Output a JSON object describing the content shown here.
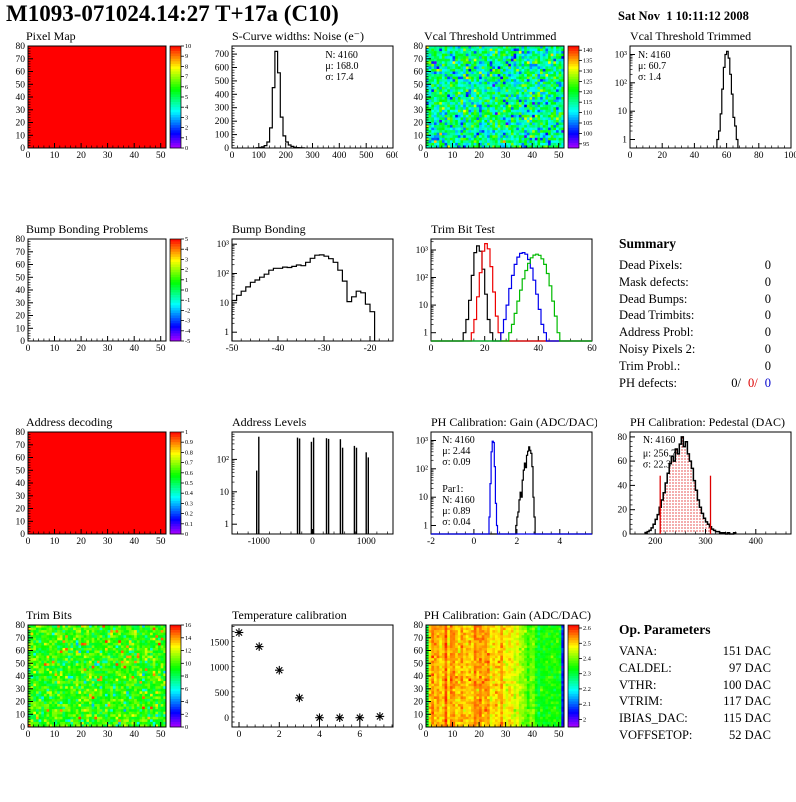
{
  "header": {
    "title": "M1093-071024.14:27 T+17a (C10)",
    "date": "Sat Nov  1 10:11:12 2008"
  },
  "summary": {
    "title": "Summary",
    "rows": [
      {
        "label": "Dead Pixels:",
        "value": "0"
      },
      {
        "label": "Mask defects:",
        "value": "0"
      },
      {
        "label": "Dead Bumps:",
        "value": "0"
      },
      {
        "label": "Dead Trimbits:",
        "value": "0"
      },
      {
        "label": "Address Probl:",
        "value": "0"
      },
      {
        "label": "Noisy Pixels 2:",
        "value": "0"
      },
      {
        "label": "Trim Probl.:",
        "value": "0"
      }
    ],
    "ph_defects": {
      "label": "PH defects:",
      "black": "0/",
      "red": "0/",
      "blue": "0"
    }
  },
  "op_parameters": {
    "title": "Op. Parameters",
    "rows": [
      {
        "label": "VANA:",
        "value": "151 DAC"
      },
      {
        "label": "CALDEL:",
        "value": "97 DAC"
      },
      {
        "label": "VTHR:",
        "value": "100 DAC"
      },
      {
        "label": "VTRIM:",
        "value": "117 DAC"
      },
      {
        "label": "IBIAS_DAC:",
        "value": "115 DAC"
      },
      {
        "label": "VOFFSETOP:",
        "value": "52 DAC"
      }
    ]
  },
  "colors": {
    "accent_red": "#dd0000",
    "accent_blue": "#0000cc",
    "hist_green": "#00bb00"
  },
  "chart_data": [
    {
      "id": "pixel-map",
      "type": "heatmap",
      "mode": "uniform",
      "title": "Pixel Map",
      "fill_value": 10,
      "xlim": [
        0,
        52
      ],
      "ylim": [
        0,
        80
      ],
      "xticks": [
        0,
        10,
        20,
        30,
        40,
        50
      ],
      "yticks": [
        0,
        10,
        20,
        30,
        40,
        50,
        60,
        70,
        80
      ],
      "zmin": 0,
      "zmax": 10,
      "colorbar": {
        "ticks": [
          0,
          1,
          2,
          3,
          4,
          5,
          6,
          7,
          8,
          9,
          10
        ]
      }
    },
    {
      "id": "scurve-noise",
      "type": "histogram",
      "title": "S-Curve widths: Noise (e⁻)",
      "xlim": [
        0,
        600
      ],
      "xticks": [
        0,
        100,
        200,
        300,
        400,
        500,
        600
      ],
      "ylim": [
        0,
        760
      ],
      "yticks": [
        0,
        100,
        200,
        300,
        400,
        500,
        600,
        700
      ],
      "series": [
        {
          "color": "#000000",
          "x0": 90,
          "bin_width": 10,
          "counts": [
            2,
            4,
            8,
            18,
            45,
            150,
            450,
            720,
            560,
            230,
            90,
            45,
            22,
            12,
            6,
            3,
            2,
            1
          ]
        }
      ],
      "stats": [
        {
          "color": "#000000",
          "x": 0.58,
          "y": 0.03,
          "lines": [
            "N: 4160",
            "μ: 168.0",
            "σ: 17.4"
          ]
        }
      ]
    },
    {
      "id": "vcal-untrimmed",
      "type": "heatmap",
      "mode": "noise",
      "title": "Vcal Threshold Untrimmed",
      "mean": 115,
      "sigma": 6,
      "seed": 7,
      "xlim": [
        0,
        52
      ],
      "ylim": [
        0,
        80
      ],
      "xticks": [
        0,
        10,
        20,
        30,
        40,
        50
      ],
      "yticks": [
        0,
        10,
        20,
        30,
        40,
        50,
        60,
        70,
        80
      ],
      "zmin": 93,
      "zmax": 142,
      "colorbar": {
        "ticks": [
          95,
          100,
          105,
          110,
          115,
          120,
          125,
          130,
          135,
          140
        ]
      }
    },
    {
      "id": "vcal-trimmed",
      "type": "histogram",
      "ylog": true,
      "title": "Vcal Threshold Trimmed",
      "xlim": [
        0,
        100
      ],
      "xticks": [
        0,
        20,
        40,
        60,
        80,
        100
      ],
      "ylog_range": [
        0.5,
        2000
      ],
      "series": [
        {
          "color": "#000000",
          "x0": 54,
          "bin_width": 1,
          "counts": [
            1,
            2,
            8,
            60,
            350,
            1000,
            1300,
            750,
            200,
            40,
            6,
            3,
            1
          ]
        }
      ],
      "stats": [
        {
          "color": "#000000",
          "x": 0.05,
          "y": 0.03,
          "lines": [
            "N: 4160",
            "μ: 60.7",
            "σ:  1.4"
          ]
        }
      ]
    },
    {
      "id": "bump-problems",
      "type": "heatmap",
      "mode": "empty",
      "title": "Bump Bonding Problems",
      "xlim": [
        0,
        52
      ],
      "ylim": [
        0,
        80
      ],
      "xticks": [
        0,
        10,
        20,
        30,
        40,
        50
      ],
      "yticks": [
        0,
        10,
        20,
        30,
        40,
        50,
        60,
        70,
        80
      ],
      "zmin": -5,
      "zmax": 5,
      "colorbar": {
        "ticks": [
          -5,
          -4,
          -3,
          -2,
          -1,
          0,
          1,
          2,
          3,
          4,
          5
        ]
      }
    },
    {
      "id": "bump-bonding",
      "type": "histogram",
      "ylog": true,
      "title": "Bump Bonding",
      "xlim": [
        -50,
        -15
      ],
      "xticks": [
        -50,
        -40,
        -30,
        -20
      ],
      "ylog_range": [
        0.5,
        1500
      ],
      "series": [
        {
          "color": "#000000",
          "x0": -50,
          "bin_width": 1,
          "counts": [
            12,
            18,
            25,
            35,
            50,
            60,
            75,
            95,
            130,
            150,
            150,
            165,
            160,
            175,
            195,
            185,
            240,
            330,
            420,
            430,
            390,
            320,
            240,
            130,
            55,
            11,
            16,
            25,
            22,
            9,
            5
          ]
        }
      ]
    },
    {
      "id": "trim-bit-test",
      "type": "histogram",
      "ylog": true,
      "title": "Trim Bit Test",
      "xlim": [
        0,
        60
      ],
      "xticks": [
        0,
        20,
        40,
        60
      ],
      "ylog_range": [
        0.5,
        2500
      ],
      "full_width": true,
      "series": [
        {
          "color": "#000000",
          "x0": 12,
          "bin_width": 1,
          "counts": [
            1,
            3,
            15,
            120,
            800,
            1400,
            900,
            200,
            25,
            3,
            1
          ]
        },
        {
          "color": "#ee0000",
          "x0": 15,
          "bin_width": 1,
          "counts": [
            1,
            3,
            20,
            150,
            900,
            1700,
            1100,
            250,
            30,
            4,
            1
          ]
        },
        {
          "color": "#0000ee",
          "x0": 26,
          "bin_width": 1,
          "counts": [
            1,
            3,
            10,
            40,
            120,
            300,
            550,
            750,
            800,
            700,
            450,
            220,
            80,
            25,
            7,
            2,
            1
          ]
        },
        {
          "color": "#00bb00",
          "x0": 29,
          "bin_width": 1,
          "counts": [
            1,
            2,
            5,
            14,
            35,
            90,
            180,
            330,
            520,
            650,
            700,
            640,
            480,
            300,
            140,
            50,
            14,
            4,
            1
          ]
        }
      ]
    },
    {
      "id": "address-decoding",
      "type": "heatmap",
      "mode": "uniform",
      "title": "Address decoding",
      "fill_value": 1,
      "xlim": [
        0,
        52
      ],
      "ylim": [
        0,
        80
      ],
      "xticks": [
        0,
        10,
        20,
        30,
        40,
        50
      ],
      "yticks": [
        0,
        10,
        20,
        30,
        40,
        50,
        60,
        70,
        80
      ],
      "zmin": 0,
      "zmax": 1,
      "colorbar": {
        "ticks": [
          0,
          0.1,
          0.2,
          0.3,
          0.4,
          0.5,
          0.6,
          0.7,
          0.8,
          0.9,
          1
        ]
      }
    },
    {
      "id": "address-levels",
      "type": "spikes",
      "ylog": true,
      "title": "Address Levels",
      "xlim": [
        -1500,
        1500
      ],
      "xticks": [
        -1000,
        0,
        1000
      ],
      "ylog_range": [
        0.5,
        700
      ],
      "spike_width": 26,
      "spikes": [
        [
          -1040,
          45
        ],
        [
          -1000,
          500
        ],
        [
          -280,
          470
        ],
        [
          -240,
          440
        ],
        [
          -20,
          350
        ],
        [
          20,
          470
        ],
        [
          260,
          450
        ],
        [
          300,
          430
        ],
        [
          520,
          420
        ],
        [
          560,
          230
        ],
        [
          780,
          260
        ],
        [
          820,
          230
        ],
        [
          1000,
          165
        ],
        [
          1040,
          115
        ]
      ]
    },
    {
      "id": "ph-gain-hist",
      "type": "histogram",
      "ylog": true,
      "title": "PH Calibration: Gain (ADC/DAC)",
      "xlim": [
        -2,
        5.5
      ],
      "xticks": [
        -2,
        0,
        2,
        4
      ],
      "ylog_range": [
        0.5,
        2000
      ],
      "full_width": true,
      "series": [
        {
          "color": "#000000",
          "x0": 1.95,
          "bin_width": 0.05,
          "counts": [
            1,
            2,
            3,
            8,
            15,
            10,
            40,
            90,
            160,
            110,
            300,
            420,
            600,
            450,
            350,
            120,
            10,
            2
          ]
        },
        {
          "color": "#0000ee",
          "x0": 0.7,
          "bin_width": 0.05,
          "counts": [
            2,
            30,
            400,
            950,
            850,
            120,
            6,
            1
          ]
        }
      ],
      "stats": [
        {
          "color": "#000000",
          "x": 0.07,
          "y": 0.02,
          "lines": [
            "N: 4160",
            "μ: 2.44",
            "σ: 0.09"
          ]
        },
        {
          "color": "#0000ee",
          "x": 0.07,
          "y": 0.5,
          "lines": [
            "Par1:",
            "N: 4160",
            "μ: 0.89",
            "σ: 0.04"
          ]
        }
      ]
    },
    {
      "id": "ph-pedestal",
      "type": "histogram",
      "title": "PH Calibration: Pedestal (DAC)",
      "xlim": [
        150,
        470
      ],
      "xticks": [
        200,
        300,
        400
      ],
      "ylim": [
        0,
        84
      ],
      "yticks": [
        0,
        20,
        40,
        60,
        80
      ],
      "series": [
        {
          "color": "#000000",
          "x0": 180,
          "bin_width": 4,
          "stroke_width": 1.5,
          "counts": [
            1,
            2,
            3,
            5,
            8,
            12,
            16,
            22,
            28,
            34,
            42,
            50,
            58,
            64,
            60,
            70,
            66,
            74,
            80,
            72,
            76,
            66,
            60,
            54,
            44,
            36,
            28,
            22,
            17,
            13,
            10,
            8,
            6,
            4,
            3,
            2,
            2,
            1,
            1,
            1,
            0,
            1,
            0,
            0,
            1
          ],
          "fill": {
            "from": 208,
            "to": 312,
            "pattern": "red-dots"
          }
        }
      ],
      "vlines": [
        {
          "x": 210,
          "y0": 0,
          "y1": 48,
          "color": "#dd0000"
        },
        {
          "x": 310,
          "y0": 0,
          "y1": 48,
          "color": "#dd0000"
        }
      ],
      "stats": [
        {
          "color": "#000000",
          "x": 0.08,
          "y": 0.02,
          "lines": [
            "N: 4160"
          ]
        },
        {
          "color": "#dd0000",
          "x": 0.08,
          "y": 0.15,
          "lines": [
            "μ: 256.7",
            "σ: 22.3"
          ]
        }
      ]
    },
    {
      "id": "trim-bits",
      "type": "heatmap",
      "mode": "noise",
      "title": "Trim Bits",
      "mean": 9.7,
      "sigma": 1.1,
      "seed": 13,
      "outlier_high": {
        "frac": 0.03,
        "min": 12.5,
        "max": 15.5
      },
      "outlier_low": {
        "frac": 0.03,
        "min": 4.5,
        "max": 7
      },
      "xlim": [
        0,
        52
      ],
      "ylim": [
        0,
        80
      ],
      "xticks": [
        0,
        10,
        20,
        30,
        40,
        50
      ],
      "yticks": [
        0,
        10,
        20,
        30,
        40,
        50,
        60,
        70,
        80
      ],
      "zmin": 0,
      "zmax": 16,
      "colorbar": {
        "ticks": [
          0,
          2,
          4,
          6,
          8,
          10,
          12,
          14,
          16
        ]
      }
    },
    {
      "id": "temp-calibration",
      "type": "scatter",
      "title": "Temperature calibration",
      "xlim": [
        -0.35,
        7.65
      ],
      "xticks": [
        0,
        2,
        4,
        6
      ],
      "ylim": [
        -180,
        1850
      ],
      "yticks": [
        0,
        500,
        1000,
        1500
      ],
      "points": [
        [
          0,
          1700
        ],
        [
          1,
          1420
        ],
        [
          2,
          950
        ],
        [
          3,
          400
        ],
        [
          4,
          5
        ],
        [
          5,
          5
        ],
        [
          6,
          5
        ],
        [
          7,
          30
        ]
      ]
    },
    {
      "id": "ph-gain-map",
      "type": "heatmap",
      "mode": "gradient",
      "title": "PH Calibration: Gain (ADC/DAC)",
      "seed": 21,
      "col_sigma": 0.025,
      "cell_sigma": 0.022,
      "col_base": [
        [
          0,
          2.33
        ],
        [
          1,
          2.52
        ],
        [
          10,
          2.53
        ],
        [
          20,
          2.52
        ],
        [
          30,
          2.46
        ],
        [
          38,
          2.4
        ],
        [
          45,
          2.33
        ],
        [
          50,
          2.31
        ],
        [
          51,
          2.07
        ]
      ],
      "xlim": [
        0,
        52
      ],
      "ylim": [
        0,
        80
      ],
      "xticks": [
        0,
        10,
        20,
        30,
        40,
        50
      ],
      "yticks": [
        0,
        10,
        20,
        30,
        40,
        50,
        60,
        70,
        80
      ],
      "zmin": 1.95,
      "zmax": 2.62,
      "colorbar": {
        "ticks": [
          2,
          2.1,
          2.2,
          2.3,
          2.4,
          2.5,
          2.6
        ]
      }
    }
  ]
}
